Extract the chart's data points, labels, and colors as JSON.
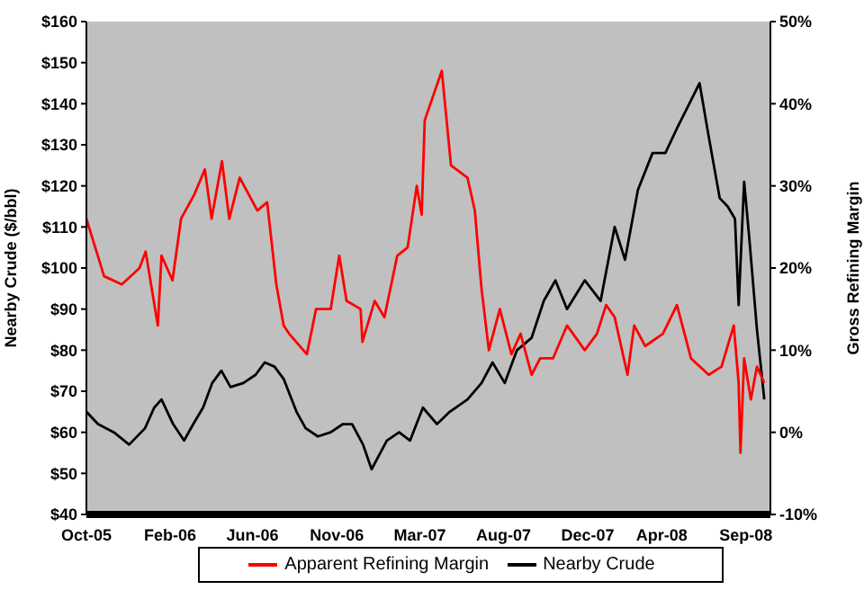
{
  "chart_data": {
    "type": "line",
    "ylabel": "Nearby Crude ($/bbl)",
    "y2label": "Gross Refining Margin",
    "xlim": [
      "2005-10-01",
      "2008-10-25"
    ],
    "xticks": [
      {
        "value": "2005-10-01",
        "label": "Oct-05"
      },
      {
        "value": "2006-02-15",
        "label": "Feb-06"
      },
      {
        "value": "2006-06-30",
        "label": "Jun-06"
      },
      {
        "value": "2006-11-15",
        "label": "Nov-06"
      },
      {
        "value": "2007-03-31",
        "label": "Mar-07"
      },
      {
        "value": "2007-08-15",
        "label": "Aug-07"
      },
      {
        "value": "2007-12-31",
        "label": "Dec-07"
      },
      {
        "value": "2008-04-30",
        "label": "Apr-08"
      },
      {
        "value": "2008-09-15",
        "label": "Sep-08"
      }
    ],
    "ylim": [
      40,
      160
    ],
    "yticks": [
      {
        "value": 40,
        "label": "$40"
      },
      {
        "value": 50,
        "label": "$50"
      },
      {
        "value": 60,
        "label": "$60"
      },
      {
        "value": 70,
        "label": "$70"
      },
      {
        "value": 80,
        "label": "$80"
      },
      {
        "value": 90,
        "label": "$90"
      },
      {
        "value": 100,
        "label": "$100"
      },
      {
        "value": 110,
        "label": "$110"
      },
      {
        "value": 120,
        "label": "$120"
      },
      {
        "value": 130,
        "label": "$130"
      },
      {
        "value": 140,
        "label": "$140"
      },
      {
        "value": 150,
        "label": "$150"
      },
      {
        "value": 160,
        "label": "$160"
      }
    ],
    "y2lim": [
      -10,
      50
    ],
    "y2ticks": [
      {
        "value": -10,
        "label": "-10%"
      },
      {
        "value": 0,
        "label": "0%"
      },
      {
        "value": 10,
        "label": "10%"
      },
      {
        "value": 20,
        "label": "20%"
      },
      {
        "value": 30,
        "label": "30%"
      },
      {
        "value": 40,
        "label": "40%"
      },
      {
        "value": 50,
        "label": "50%"
      }
    ],
    "legend": "bottom",
    "marker": "none",
    "grid": false,
    "series": [
      {
        "name": "Nearby Crude",
        "color": "#000000",
        "x": [
          "2005-10-01",
          "2005-10-20",
          "2005-11-15",
          "2005-12-10",
          "2006-01-05",
          "2006-01-20",
          "2006-02-01",
          "2006-02-20",
          "2006-03-10",
          "2006-03-25",
          "2006-04-10",
          "2006-04-25",
          "2006-05-10",
          "2006-05-25",
          "2006-06-15",
          "2006-07-05",
          "2006-07-20",
          "2006-08-05",
          "2006-08-20",
          "2006-09-10",
          "2006-09-25",
          "2006-10-15",
          "2006-11-05",
          "2006-11-25",
          "2006-12-10",
          "2006-12-28",
          "2007-01-11",
          "2007-02-05",
          "2007-02-25",
          "2007-03-15",
          "2007-04-05",
          "2007-04-28",
          "2007-05-19",
          "2007-06-17",
          "2007-07-10",
          "2007-07-28",
          "2007-08-17",
          "2007-09-06",
          "2007-09-30",
          "2007-10-20",
          "2007-11-08",
          "2007-11-27",
          "2007-12-26",
          "2008-01-21",
          "2008-02-13",
          "2008-03-01",
          "2008-03-22",
          "2008-04-15",
          "2008-05-06",
          "2008-05-25",
          "2008-07-01",
          "2008-07-16",
          "2008-08-03",
          "2008-08-16",
          "2008-08-28",
          "2008-09-03",
          "2008-09-12",
          "2008-09-20",
          "2008-10-03",
          "2008-10-15"
        ],
        "values": [
          65,
          62,
          60,
          57,
          61,
          66,
          68,
          62,
          58,
          62,
          66,
          72,
          75,
          71,
          72,
          74,
          77,
          76,
          73,
          65,
          61,
          59,
          60,
          62,
          62,
          57,
          51,
          58,
          60,
          58,
          66,
          62,
          65,
          68,
          72,
          77,
          72,
          80,
          83,
          92,
          97,
          90,
          97,
          92,
          110,
          102,
          119,
          128,
          128,
          134,
          145,
          132,
          117,
          115,
          112,
          91,
          121,
          108,
          85,
          68
        ]
      },
      {
        "name": "Apparent Refining Margin",
        "color": "#ff0000",
        "axis": "y2",
        "x": [
          "2005-10-01",
          "2005-10-30",
          "2005-11-28",
          "2005-12-27",
          "2006-01-06",
          "2006-01-26",
          "2006-02-01",
          "2006-02-19",
          "2006-03-05",
          "2006-03-27",
          "2006-04-13",
          "2006-04-24",
          "2006-05-11",
          "2006-05-23",
          "2006-06-09",
          "2006-07-08",
          "2006-07-24",
          "2006-08-08",
          "2006-08-20",
          "2006-08-29",
          "2006-09-27",
          "2006-10-12",
          "2006-11-05",
          "2006-11-19",
          "2006-12-01",
          "2006-12-24",
          "2006-12-27",
          "2007-01-16",
          "2007-02-01",
          "2007-02-22",
          "2007-03-11",
          "2007-03-26",
          "2007-04-03",
          "2007-04-08",
          "2007-05-06",
          "2007-05-21",
          "2007-06-17",
          "2007-06-29",
          "2007-07-10",
          "2007-07-22",
          "2007-08-09",
          "2007-08-28",
          "2007-09-12",
          "2007-09-30",
          "2007-10-14",
          "2007-11-04",
          "2007-11-27",
          "2007-12-26",
          "2008-01-15",
          "2008-01-30",
          "2008-02-13",
          "2008-03-05",
          "2008-03-16",
          "2008-04-03",
          "2008-05-02",
          "2008-05-25",
          "2008-06-17",
          "2008-07-16",
          "2008-08-06",
          "2008-08-26",
          "2008-09-03",
          "2008-09-06",
          "2008-09-12",
          "2008-09-23",
          "2008-10-03",
          "2008-10-15"
        ],
        "values": [
          26,
          19,
          18,
          20,
          22,
          13,
          21.5,
          18.5,
          26,
          29,
          32,
          26,
          33,
          26,
          31,
          27,
          28,
          18,
          13,
          12,
          9.5,
          15,
          15,
          21.5,
          16,
          15,
          11,
          16,
          14,
          21.5,
          22.5,
          30,
          26.5,
          38,
          44,
          32.5,
          31,
          27,
          17.5,
          10,
          15,
          9.5,
          12,
          7,
          9,
          9,
          13,
          10,
          12,
          15.5,
          14,
          7,
          13,
          10.5,
          12,
          15.5,
          9,
          7,
          8,
          13,
          6,
          -2.5,
          9,
          4,
          8,
          6
        ]
      }
    ]
  }
}
